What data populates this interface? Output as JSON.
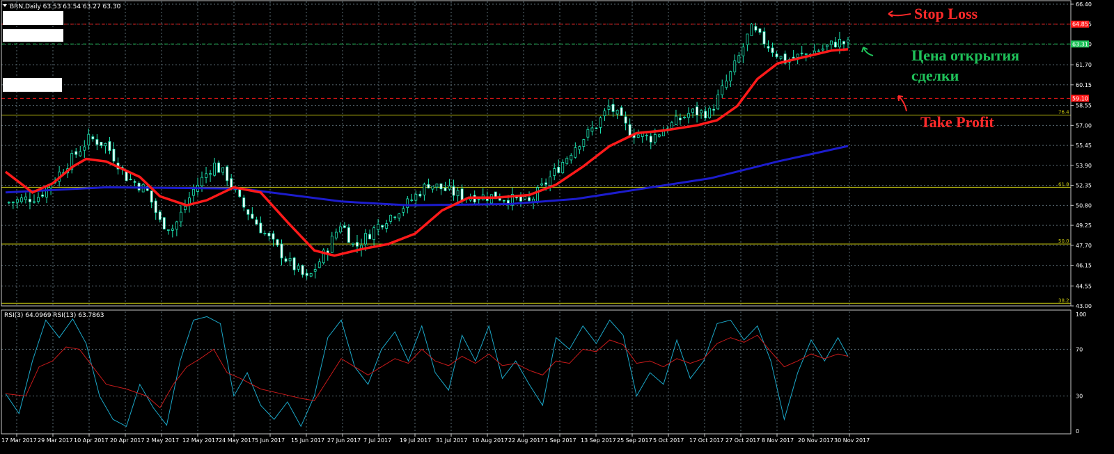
{
  "header": {
    "symbol_text": "BRN,Daily  63.53 63.54 63.27 63.30"
  },
  "rsi_header": {
    "text": "RSI(3) 64.0969  RSI(13) 63.7863"
  },
  "annotations": {
    "stop_loss": "Stop Loss",
    "take_profit": "Take Profit",
    "entry_line1": "Цена открытия",
    "entry_line2": "сделки"
  },
  "colors": {
    "background": "#000000",
    "grid": "#5a6b74",
    "candle": "#1de9b6",
    "ma_fast": "#ff1a1a",
    "ma_slow": "#1c1ccc",
    "fib": "#c8c810",
    "stop_loss_line": "#e83333",
    "entry_line": "#1fc25a",
    "rsi3": "#1ba7c8",
    "rsi13": "#c81a1a"
  },
  "chart_data": [
    {
      "type": "candlestick",
      "yticks": [
        "66.40",
        "64.85",
        "63.30",
        "61.70",
        "60.15",
        "58.55",
        "57.00",
        "55.45",
        "53.90",
        "52.35",
        "50.80",
        "49.25",
        "47.70",
        "46.15",
        "44.55",
        "43.00"
      ],
      "ylim": [
        43.0,
        66.4
      ],
      "xticks": [
        "17 Mar 2017",
        "29 Mar 2017",
        "10 Apr 2017",
        "20 Apr 2017",
        "2 May 2017",
        "12 May 2017",
        "24 May 2017",
        "5 Jun 2017",
        "15 Jun 2017",
        "27 Jun 2017",
        "7 Jul 2017",
        "19 Jul 2017",
        "31 Jul 2017",
        "10 Aug 2017",
        "22 Aug 2017",
        "1 Sep 2017",
        "13 Sep 2017",
        "25 Sep 2017",
        "5 Oct 2017",
        "17 Oct 2017",
        "27 Oct 2017",
        "8 Nov 2017",
        "20 Nov 2017",
        "30 Nov 2017"
      ],
      "price_labels": [
        {
          "name": "stop-loss",
          "value": 64.85,
          "text": "64.85",
          "color": "#ff1a1a"
        },
        {
          "name": "entry",
          "value": 63.31,
          "text": "63.31",
          "color": "#1fc25a"
        },
        {
          "name": "take-profit",
          "value": 59.1,
          "text": "59.10",
          "color": "#ff1a1a"
        }
      ],
      "fib_levels": [
        {
          "value": 57.8,
          "label": "76.4"
        },
        {
          "value": 52.2,
          "label": "61.8"
        },
        {
          "value": 47.8,
          "label": "50.0"
        },
        {
          "value": 43.2,
          "label": "38.2"
        }
      ],
      "close_path": [
        {
          "x": 0,
          "y": 51.0
        },
        {
          "x": 10,
          "y": 51.5
        },
        {
          "x": 20,
          "y": 54.5
        },
        {
          "x": 25,
          "y": 56.0
        },
        {
          "x": 30,
          "y": 55.5
        },
        {
          "x": 36,
          "y": 53.0
        },
        {
          "x": 42,
          "y": 52.0
        },
        {
          "x": 46,
          "y": 49.5
        },
        {
          "x": 50,
          "y": 49.0
        },
        {
          "x": 56,
          "y": 52.0
        },
        {
          "x": 62,
          "y": 54.0
        },
        {
          "x": 66,
          "y": 53.0
        },
        {
          "x": 70,
          "y": 51.0
        },
        {
          "x": 76,
          "y": 49.0
        },
        {
          "x": 84,
          "y": 46.5
        },
        {
          "x": 90,
          "y": 45.0
        },
        {
          "x": 96,
          "y": 47.5
        },
        {
          "x": 100,
          "y": 49.5
        },
        {
          "x": 104,
          "y": 47.5
        },
        {
          "x": 112,
          "y": 49.5
        },
        {
          "x": 120,
          "y": 51.0
        },
        {
          "x": 126,
          "y": 52.5
        },
        {
          "x": 136,
          "y": 51.5
        },
        {
          "x": 146,
          "y": 51.5
        },
        {
          "x": 156,
          "y": 51.0
        },
        {
          "x": 164,
          "y": 53.5
        },
        {
          "x": 170,
          "y": 55.5
        },
        {
          "x": 176,
          "y": 57.0
        },
        {
          "x": 180,
          "y": 58.5
        },
        {
          "x": 186,
          "y": 56.5
        },
        {
          "x": 192,
          "y": 56.0
        },
        {
          "x": 198,
          "y": 57.0
        },
        {
          "x": 204,
          "y": 58.0
        },
        {
          "x": 210,
          "y": 58.0
        },
        {
          "x": 214,
          "y": 60.0
        },
        {
          "x": 218,
          "y": 62.0
        },
        {
          "x": 222,
          "y": 64.5
        },
        {
          "x": 226,
          "y": 63.5
        },
        {
          "x": 232,
          "y": 62.0
        },
        {
          "x": 238,
          "y": 62.5
        },
        {
          "x": 244,
          "y": 63.0
        },
        {
          "x": 248,
          "y": 63.5
        },
        {
          "x": 251,
          "y": 63.3
        }
      ],
      "ma_fast": [
        {
          "x": 0,
          "y": 53.4
        },
        {
          "x": 8,
          "y": 51.8
        },
        {
          "x": 14,
          "y": 52.5
        },
        {
          "x": 20,
          "y": 53.8
        },
        {
          "x": 24,
          "y": 54.4
        },
        {
          "x": 30,
          "y": 54.2
        },
        {
          "x": 40,
          "y": 53.0
        },
        {
          "x": 46,
          "y": 51.5
        },
        {
          "x": 54,
          "y": 50.8
        },
        {
          "x": 60,
          "y": 51.2
        },
        {
          "x": 68,
          "y": 52.2
        },
        {
          "x": 76,
          "y": 51.8
        },
        {
          "x": 84,
          "y": 49.5
        },
        {
          "x": 92,
          "y": 47.3
        },
        {
          "x": 98,
          "y": 46.9
        },
        {
          "x": 106,
          "y": 47.4
        },
        {
          "x": 114,
          "y": 47.8
        },
        {
          "x": 122,
          "y": 48.6
        },
        {
          "x": 130,
          "y": 50.4
        },
        {
          "x": 138,
          "y": 51.4
        },
        {
          "x": 146,
          "y": 51.4
        },
        {
          "x": 156,
          "y": 51.6
        },
        {
          "x": 164,
          "y": 52.4
        },
        {
          "x": 172,
          "y": 53.8
        },
        {
          "x": 180,
          "y": 55.4
        },
        {
          "x": 188,
          "y": 56.4
        },
        {
          "x": 196,
          "y": 56.6
        },
        {
          "x": 206,
          "y": 57.0
        },
        {
          "x": 212,
          "y": 57.4
        },
        {
          "x": 218,
          "y": 58.5
        },
        {
          "x": 224,
          "y": 60.6
        },
        {
          "x": 230,
          "y": 61.8
        },
        {
          "x": 238,
          "y": 62.3
        },
        {
          "x": 246,
          "y": 62.8
        },
        {
          "x": 251,
          "y": 62.9
        }
      ],
      "ma_slow": [
        {
          "x": 0,
          "y": 51.8
        },
        {
          "x": 30,
          "y": 52.2
        },
        {
          "x": 70,
          "y": 52.1
        },
        {
          "x": 100,
          "y": 51.1
        },
        {
          "x": 120,
          "y": 50.8
        },
        {
          "x": 150,
          "y": 50.9
        },
        {
          "x": 170,
          "y": 51.3
        },
        {
          "x": 190,
          "y": 52.1
        },
        {
          "x": 210,
          "y": 52.9
        },
        {
          "x": 230,
          "y": 54.2
        },
        {
          "x": 251,
          "y": 55.4
        }
      ]
    },
    {
      "type": "line",
      "ylim": [
        0,
        100
      ],
      "yticks": [
        "100",
        "70",
        "30",
        "0"
      ],
      "series": [
        {
          "name": "RSI(3)",
          "points": [
            {
              "x": 0,
              "y": 32
            },
            {
              "x": 4,
              "y": 15
            },
            {
              "x": 8,
              "y": 60
            },
            {
              "x": 12,
              "y": 95
            },
            {
              "x": 16,
              "y": 80
            },
            {
              "x": 20,
              "y": 96
            },
            {
              "x": 24,
              "y": 75
            },
            {
              "x": 28,
              "y": 30
            },
            {
              "x": 32,
              "y": 10
            },
            {
              "x": 36,
              "y": 4
            },
            {
              "x": 40,
              "y": 40
            },
            {
              "x": 44,
              "y": 20
            },
            {
              "x": 48,
              "y": 5
            },
            {
              "x": 52,
              "y": 60
            },
            {
              "x": 56,
              "y": 95
            },
            {
              "x": 60,
              "y": 98
            },
            {
              "x": 64,
              "y": 92
            },
            {
              "x": 68,
              "y": 30
            },
            {
              "x": 72,
              "y": 50
            },
            {
              "x": 76,
              "y": 22
            },
            {
              "x": 80,
              "y": 10
            },
            {
              "x": 84,
              "y": 25
            },
            {
              "x": 88,
              "y": 4
            },
            {
              "x": 92,
              "y": 30
            },
            {
              "x": 96,
              "y": 80
            },
            {
              "x": 100,
              "y": 95
            },
            {
              "x": 104,
              "y": 55
            },
            {
              "x": 108,
              "y": 40
            },
            {
              "x": 112,
              "y": 70
            },
            {
              "x": 116,
              "y": 85
            },
            {
              "x": 120,
              "y": 60
            },
            {
              "x": 124,
              "y": 90
            },
            {
              "x": 128,
              "y": 50
            },
            {
              "x": 132,
              "y": 35
            },
            {
              "x": 136,
              "y": 82
            },
            {
              "x": 140,
              "y": 60
            },
            {
              "x": 144,
              "y": 90
            },
            {
              "x": 148,
              "y": 45
            },
            {
              "x": 152,
              "y": 60
            },
            {
              "x": 156,
              "y": 40
            },
            {
              "x": 160,
              "y": 22
            },
            {
              "x": 164,
              "y": 80
            },
            {
              "x": 168,
              "y": 70
            },
            {
              "x": 172,
              "y": 90
            },
            {
              "x": 176,
              "y": 75
            },
            {
              "x": 180,
              "y": 95
            },
            {
              "x": 184,
              "y": 82
            },
            {
              "x": 188,
              "y": 30
            },
            {
              "x": 192,
              "y": 50
            },
            {
              "x": 196,
              "y": 40
            },
            {
              "x": 200,
              "y": 78
            },
            {
              "x": 204,
              "y": 45
            },
            {
              "x": 208,
              "y": 60
            },
            {
              "x": 212,
              "y": 92
            },
            {
              "x": 216,
              "y": 95
            },
            {
              "x": 220,
              "y": 78
            },
            {
              "x": 224,
              "y": 90
            },
            {
              "x": 228,
              "y": 60
            },
            {
              "x": 232,
              "y": 10
            },
            {
              "x": 236,
              "y": 50
            },
            {
              "x": 240,
              "y": 78
            },
            {
              "x": 244,
              "y": 60
            },
            {
              "x": 248,
              "y": 80
            },
            {
              "x": 251,
              "y": 64
            }
          ]
        },
        {
          "name": "RSI(13)",
          "points": [
            {
              "x": 0,
              "y": 32
            },
            {
              "x": 6,
              "y": 30
            },
            {
              "x": 10,
              "y": 55
            },
            {
              "x": 14,
              "y": 60
            },
            {
              "x": 18,
              "y": 72
            },
            {
              "x": 22,
              "y": 70
            },
            {
              "x": 26,
              "y": 55
            },
            {
              "x": 30,
              "y": 40
            },
            {
              "x": 36,
              "y": 36
            },
            {
              "x": 42,
              "y": 30
            },
            {
              "x": 46,
              "y": 20
            },
            {
              "x": 50,
              "y": 40
            },
            {
              "x": 54,
              "y": 55
            },
            {
              "x": 58,
              "y": 62
            },
            {
              "x": 62,
              "y": 70
            },
            {
              "x": 66,
              "y": 50
            },
            {
              "x": 70,
              "y": 45
            },
            {
              "x": 76,
              "y": 36
            },
            {
              "x": 82,
              "y": 32
            },
            {
              "x": 88,
              "y": 28
            },
            {
              "x": 92,
              "y": 26
            },
            {
              "x": 96,
              "y": 44
            },
            {
              "x": 100,
              "y": 62
            },
            {
              "x": 104,
              "y": 55
            },
            {
              "x": 108,
              "y": 48
            },
            {
              "x": 112,
              "y": 55
            },
            {
              "x": 116,
              "y": 62
            },
            {
              "x": 120,
              "y": 58
            },
            {
              "x": 124,
              "y": 70
            },
            {
              "x": 128,
              "y": 60
            },
            {
              "x": 132,
              "y": 56
            },
            {
              "x": 136,
              "y": 64
            },
            {
              "x": 140,
              "y": 58
            },
            {
              "x": 144,
              "y": 66
            },
            {
              "x": 148,
              "y": 56
            },
            {
              "x": 152,
              "y": 58
            },
            {
              "x": 156,
              "y": 52
            },
            {
              "x": 160,
              "y": 48
            },
            {
              "x": 164,
              "y": 60
            },
            {
              "x": 168,
              "y": 58
            },
            {
              "x": 172,
              "y": 70
            },
            {
              "x": 176,
              "y": 68
            },
            {
              "x": 180,
              "y": 78
            },
            {
              "x": 184,
              "y": 74
            },
            {
              "x": 188,
              "y": 58
            },
            {
              "x": 192,
              "y": 60
            },
            {
              "x": 196,
              "y": 55
            },
            {
              "x": 200,
              "y": 62
            },
            {
              "x": 204,
              "y": 58
            },
            {
              "x": 208,
              "y": 62
            },
            {
              "x": 212,
              "y": 75
            },
            {
              "x": 216,
              "y": 80
            },
            {
              "x": 220,
              "y": 76
            },
            {
              "x": 224,
              "y": 82
            },
            {
              "x": 228,
              "y": 68
            },
            {
              "x": 232,
              "y": 55
            },
            {
              "x": 236,
              "y": 60
            },
            {
              "x": 240,
              "y": 66
            },
            {
              "x": 244,
              "y": 62
            },
            {
              "x": 248,
              "y": 66
            },
            {
              "x": 251,
              "y": 64
            }
          ]
        }
      ]
    }
  ]
}
